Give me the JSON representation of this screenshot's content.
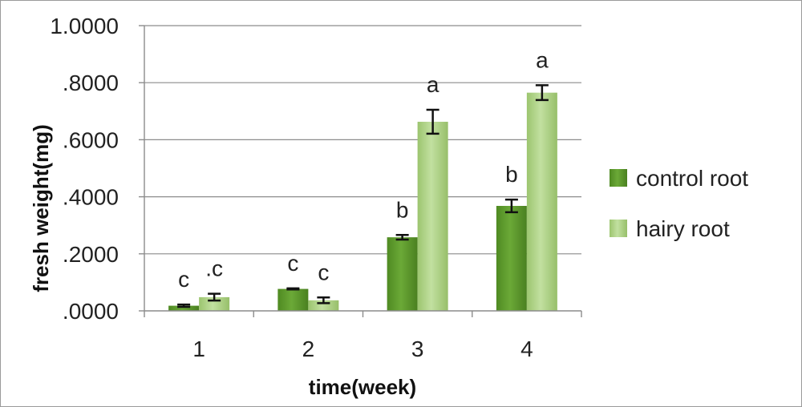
{
  "chart_data": {
    "type": "bar",
    "title": "",
    "xlabel": "time(week)",
    "ylabel": "fresh weight(mg)",
    "ylim": [
      0,
      1.0
    ],
    "yticks": [
      0,
      0.2,
      0.4,
      0.6,
      0.8,
      1.0
    ],
    "ytick_labels": [
      ".0000",
      ".2000",
      ".4000",
      ".6000",
      ".8000",
      "1.0000"
    ],
    "categories": [
      "1",
      "2",
      "3",
      "4"
    ],
    "grid": true,
    "legend_position": "right",
    "series": [
      {
        "name": "control root",
        "color": "#5f9a2c",
        "values": [
          0.018,
          0.077,
          0.258,
          0.368
        ],
        "errors": [
          0.004,
          0.002,
          0.008,
          0.022
        ],
        "annotations": [
          "c",
          "c",
          "b",
          "b"
        ]
      },
      {
        "name": "hairy root",
        "color": "#a9cf82",
        "values": [
          0.048,
          0.037,
          0.663,
          0.765
        ],
        "errors": [
          0.012,
          0.01,
          0.042,
          0.026
        ],
        "annotations": [
          ".c",
          "c",
          "a",
          "a"
        ]
      }
    ]
  }
}
